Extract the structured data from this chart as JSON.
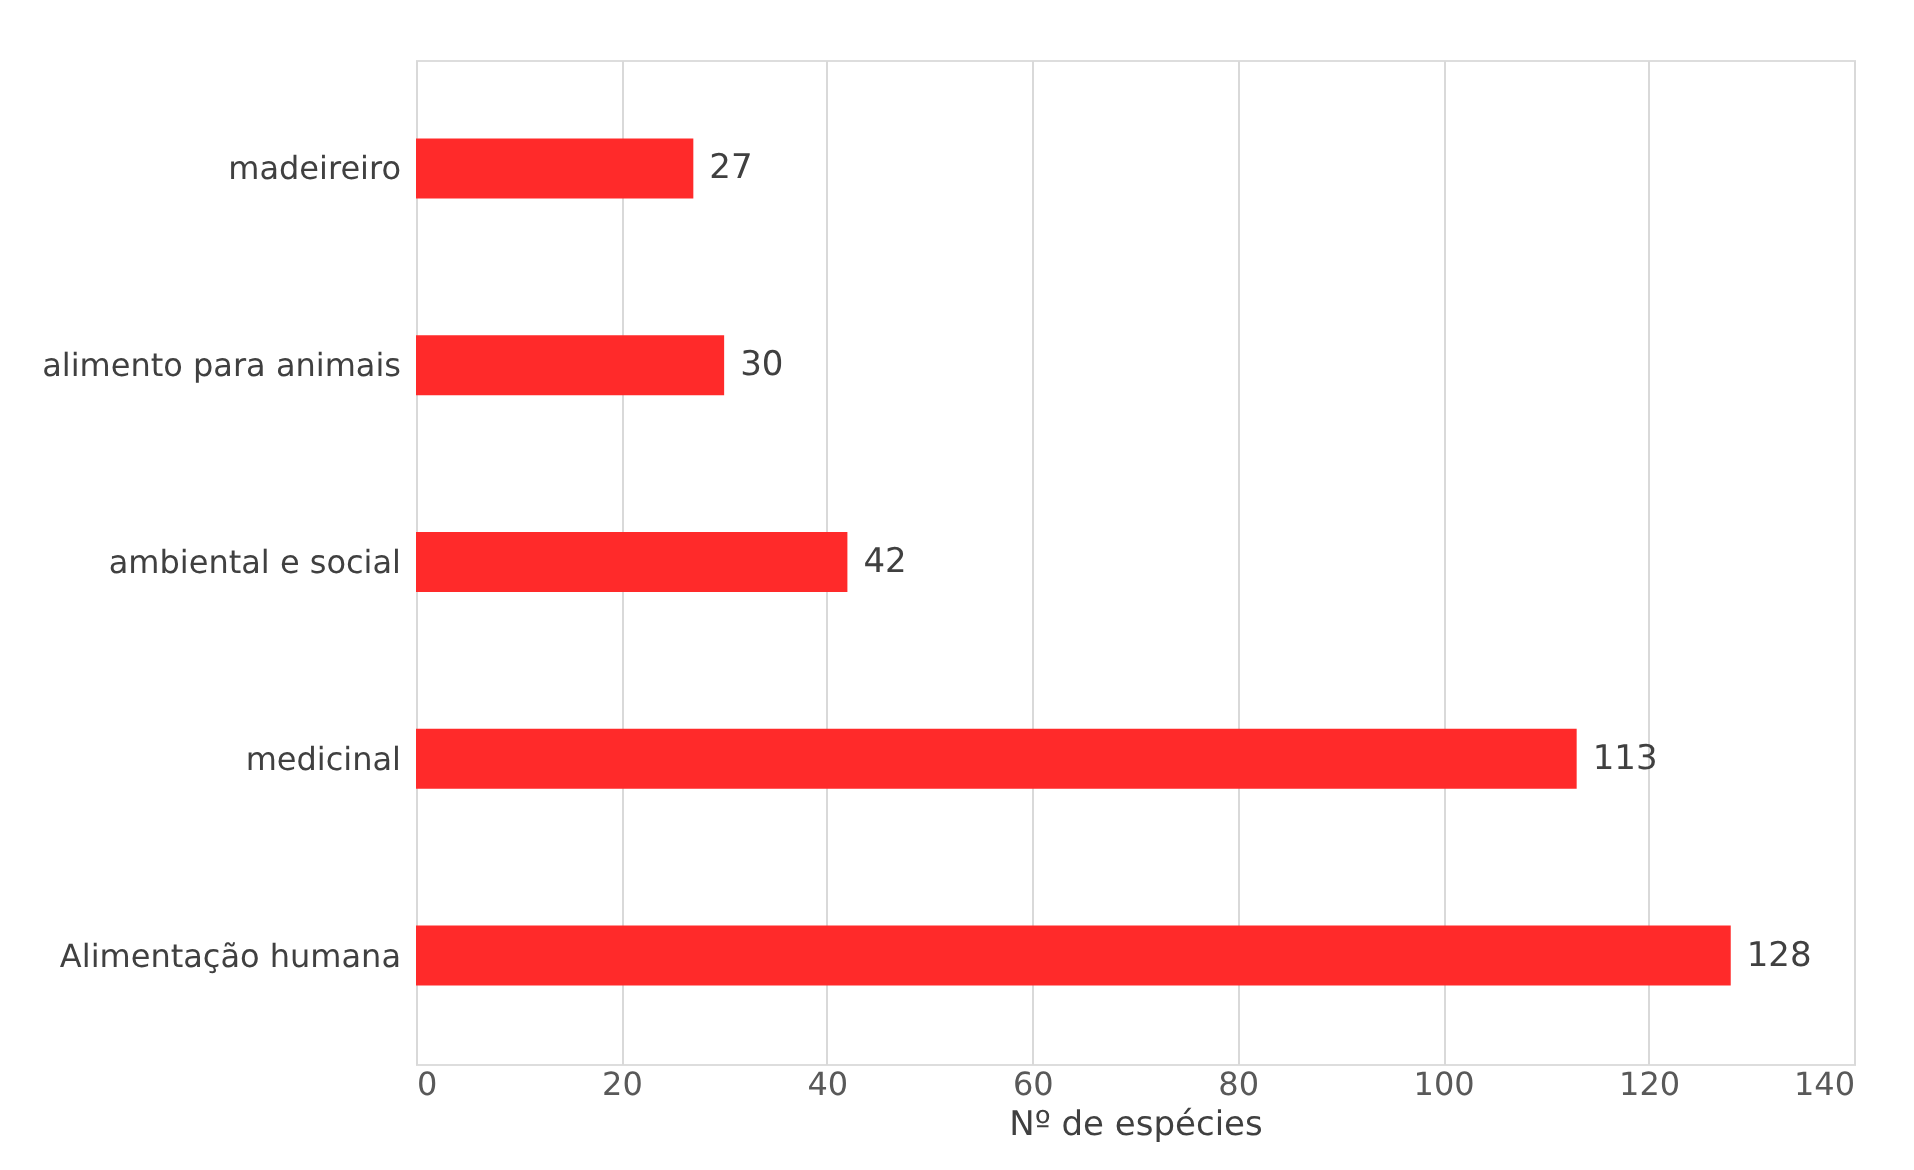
{
  "chart_data": {
    "type": "bar",
    "orientation": "horizontal",
    "xlabel": "Nº de espécies",
    "categories": [
      "madeireiro",
      "alimento para animais",
      "ambiental e social",
      "medicinal",
      "Alimentação humana"
    ],
    "values": [
      27,
      30,
      42,
      113,
      128
    ],
    "color": "#ff2a2a",
    "xlim": [
      0,
      140
    ],
    "xticks": [
      0,
      20,
      40,
      60,
      80,
      100,
      120,
      140
    ],
    "grid": "x",
    "data_labels": true
  }
}
